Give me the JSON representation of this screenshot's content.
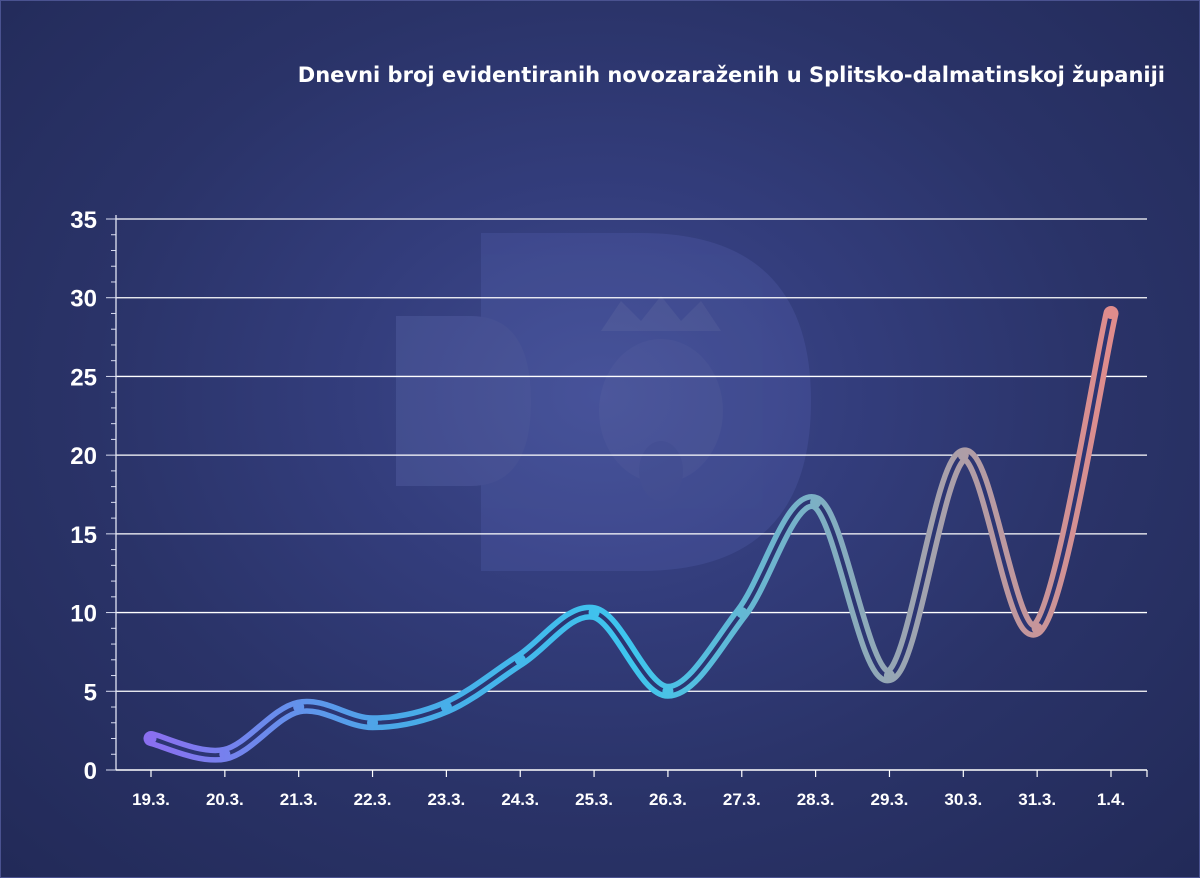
{
  "chart_data": {
    "type": "line",
    "title": "Dnevni broj evidentiranih novozaraženih u Splitsko-dalmatinskoj županiji",
    "categories": [
      "19.3.",
      "20.3.",
      "21.3.",
      "22.3.",
      "23.3.",
      "24.3.",
      "25.3.",
      "26.3.",
      "27.3.",
      "28.3.",
      "29.3.",
      "30.3.",
      "31.3.",
      "1.4."
    ],
    "series": [
      {
        "values": [
          2,
          1,
          4,
          3,
          4,
          7,
          10,
          5,
          10,
          17,
          6,
          20,
          9,
          29
        ]
      }
    ],
    "ylim": [
      0,
      35
    ],
    "yticks": [
      0,
      5,
      10,
      15,
      20,
      25,
      30,
      35
    ],
    "xlabel": "",
    "ylabel": "",
    "grid": true,
    "legend": "none",
    "gradient_colors": [
      "#8a6ff0",
      "#4aa8e8",
      "#3ec6ee",
      "#8fa9b8",
      "#e08c8c"
    ],
    "background_color": "#2f3872"
  }
}
